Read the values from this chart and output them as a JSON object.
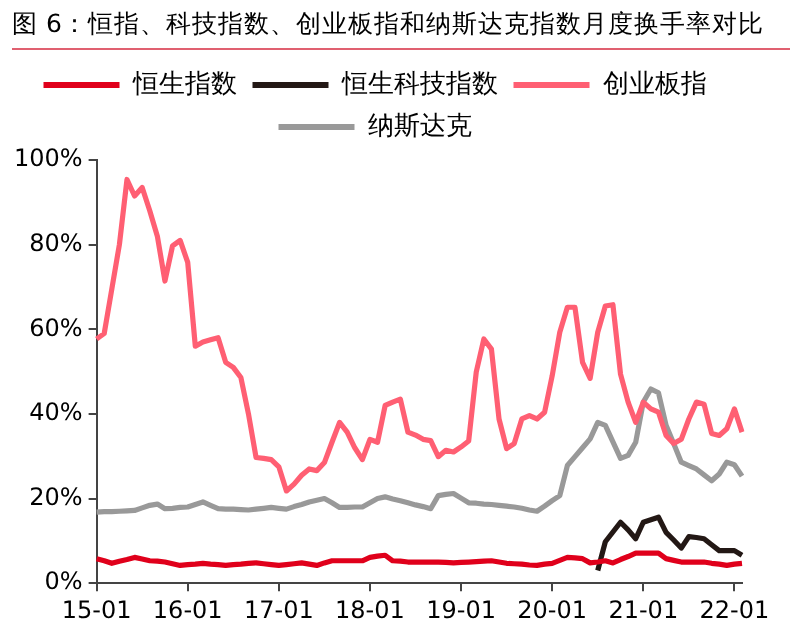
{
  "chart_data": {
    "type": "line",
    "title": "图 6：恒指、科技指数、创业板指和纳斯达克指数月度换手率对比",
    "categories": [
      "15-01",
      null,
      null,
      null,
      null,
      null,
      null,
      null,
      null,
      null,
      null,
      null,
      "16-01",
      null,
      null,
      null,
      null,
      null,
      null,
      null,
      null,
      null,
      null,
      null,
      "17-01",
      null,
      null,
      null,
      null,
      null,
      null,
      null,
      null,
      null,
      null,
      null,
      "18-01",
      null,
      null,
      null,
      null,
      null,
      null,
      null,
      null,
      null,
      null,
      null,
      "19-01",
      null,
      null,
      null,
      null,
      null,
      null,
      null,
      null,
      null,
      null,
      null,
      "20-01",
      null,
      null,
      null,
      null,
      null,
      null,
      null,
      null,
      null,
      null,
      null,
      "21-01",
      null,
      null,
      null,
      null,
      null,
      null,
      null,
      null,
      null,
      null,
      null,
      "22-01",
      null
    ],
    "series": [
      {
        "name": "恒生指数",
        "color": "#e0001b",
        "values": [
          5.8,
          5.3,
          4.7,
          5.2,
          5.6,
          6.1,
          5.7,
          5.3,
          5.2,
          5,
          4.6,
          4.2,
          4.4,
          4.5,
          4.7,
          4.5,
          4.4,
          4.2,
          4.4,
          4.5,
          4.7,
          4.8,
          4.6,
          4.4,
          4.2,
          4.4,
          4.6,
          4.8,
          4.5,
          4.2,
          4.8,
          5.3,
          5.3,
          5.3,
          5.3,
          5.3,
          6.1,
          6.4,
          6.6,
          5.3,
          5.2,
          5,
          5,
          5,
          5,
          5,
          4.9,
          4.8,
          4.9,
          5,
          5.1,
          5.2,
          5.3,
          5,
          4.7,
          4.6,
          4.5,
          4.3,
          4.2,
          4.5,
          4.7,
          5.4,
          6.1,
          6,
          5.8,
          4.8,
          5,
          5.3,
          4.8,
          5.6,
          6.3,
          7.1,
          7.1,
          7.1,
          7.1,
          5.8,
          5.4,
          5,
          5,
          5,
          5,
          4.7,
          4.5,
          4.2,
          4.5,
          4.7
        ]
      },
      {
        "name": "恒生科技指数",
        "color": "#231815",
        "values": [
          null,
          null,
          null,
          null,
          null,
          null,
          null,
          null,
          null,
          null,
          null,
          null,
          null,
          null,
          null,
          null,
          null,
          null,
          null,
          null,
          null,
          null,
          null,
          null,
          null,
          null,
          null,
          null,
          null,
          null,
          null,
          null,
          null,
          null,
          null,
          null,
          null,
          null,
          null,
          null,
          null,
          null,
          null,
          null,
          null,
          null,
          null,
          null,
          null,
          null,
          null,
          null,
          null,
          null,
          null,
          null,
          null,
          null,
          null,
          null,
          null,
          null,
          null,
          null,
          null,
          null,
          3,
          9.8,
          12.1,
          14.4,
          12.6,
          10.5,
          14.4,
          15,
          15.6,
          12,
          10.2,
          8.3,
          11,
          10.8,
          10.5,
          9.1,
          7.7,
          7.7,
          7.7,
          6.6
        ]
      },
      {
        "name": "创业板指",
        "color": "#ff5f73",
        "values": [
          57.7,
          59,
          69.5,
          80,
          95.4,
          91.5,
          93.5,
          88,
          82,
          71.4,
          79.7,
          81,
          75.8,
          56,
          57,
          57.5,
          58,
          52.2,
          51,
          48.6,
          40,
          29.7,
          29.5,
          29.2,
          27.5,
          21.8,
          23.4,
          25.5,
          27,
          26.6,
          28.5,
          33.3,
          38,
          35.7,
          32,
          29.2,
          34,
          33.3,
          42,
          42.8,
          43.5,
          35.7,
          35,
          34,
          33.7,
          29.9,
          31.4,
          31,
          32.2,
          33.6,
          49.9,
          57.7,
          55.3,
          38.8,
          31.8,
          33,
          38.8,
          39.6,
          38.8,
          40.4,
          49,
          59.3,
          65.2,
          65.2,
          52.2,
          48.4,
          59.3,
          65.5,
          65.8,
          49.4,
          42.8,
          38,
          42.8,
          41.2,
          40.4,
          34.9,
          33,
          34,
          38.8,
          42.8,
          42.3,
          35.4,
          34.9,
          36.5,
          41.2,
          35.7
        ]
      },
      {
        "name": "纳斯达克",
        "color": "#999999",
        "values": [
          16.8,
          16.9,
          16.9,
          17,
          17.1,
          17.2,
          17.8,
          18.4,
          18.7,
          17.6,
          17.7,
          17.9,
          18,
          18.6,
          19.2,
          18.4,
          17.6,
          17.5,
          17.5,
          17.4,
          17.3,
          17.5,
          17.7,
          17.9,
          17.7,
          17.5,
          18.1,
          18.6,
          19.2,
          19.6,
          20,
          19,
          17.9,
          17.9,
          18,
          18,
          19,
          20,
          20.4,
          19.9,
          19.5,
          19,
          18.5,
          18.1,
          17.6,
          20.7,
          21,
          21.2,
          20.1,
          19,
          18.9,
          18.7,
          18.6,
          18.4,
          18.2,
          18,
          17.7,
          17.3,
          17,
          18.2,
          19.5,
          20.7,
          27.8,
          29.9,
          32,
          34.1,
          38,
          37.3,
          33.4,
          29.5,
          30.2,
          33.3,
          42.8,
          45.9,
          45,
          37.3,
          33,
          28.6,
          27.8,
          27,
          25.6,
          24.2,
          25.8,
          28.6,
          28,
          25.3
        ]
      }
    ],
    "ylim": [
      0,
      100
    ],
    "yticks": [
      {
        "value": 0,
        "label": "0%"
      },
      {
        "value": 20,
        "label": "20%"
      },
      {
        "value": 40,
        "label": "40%"
      },
      {
        "value": 60,
        "label": "60%"
      },
      {
        "value": 80,
        "label": "80%"
      },
      {
        "value": 100,
        "label": "100%"
      }
    ],
    "grid": false,
    "legend": "top",
    "marker": "none",
    "line_style": "solid"
  }
}
